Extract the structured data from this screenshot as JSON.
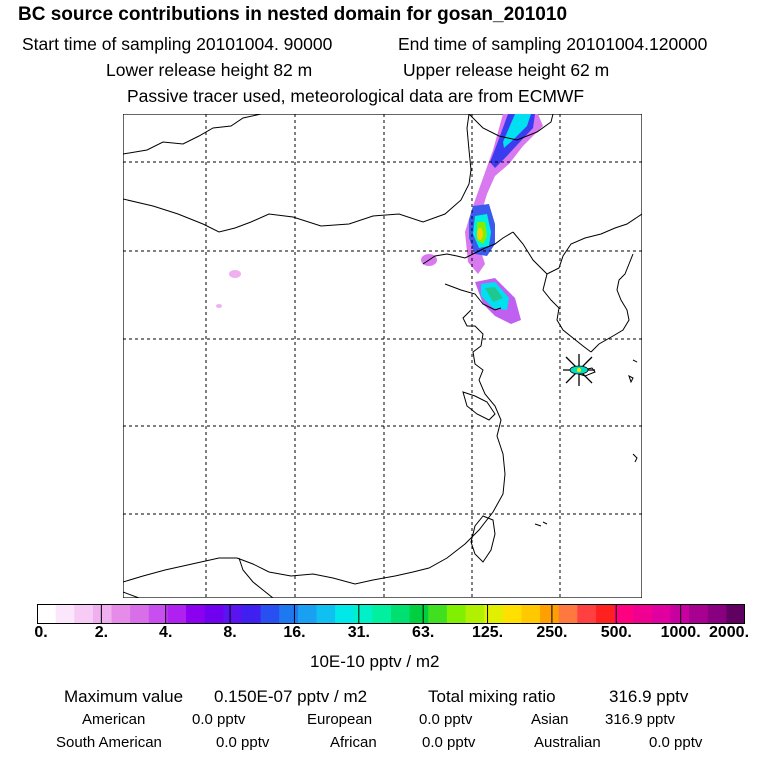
{
  "header": {
    "title": "BC  source contributions in nested domain for gosan_201010",
    "start_label": "Start time of sampling 20101004. 90000",
    "end_label": "End time of sampling 20101004.120000",
    "lower_label": "Lower release height   82 m",
    "upper_label": "Upper release height   62 m",
    "tracer_note": "Passive tracer used, meteorological data are from ECMWF"
  },
  "colorbar": {
    "ticks": [
      "0.",
      "2.",
      "4.",
      "8.",
      "16.",
      "31.",
      "63.",
      "125.",
      "250.",
      "500.",
      "1000.",
      "2000."
    ],
    "units": "10E-10 pptv / m2",
    "colors": [
      "#ffffff",
      "#fbe6fb",
      "#f6ccf6",
      "#f0b0f0",
      "#e58ce8",
      "#d86ee8",
      "#c94ef0",
      "#b020f0",
      "#8c00f0",
      "#7000f0",
      "#5a14f0",
      "#4020f0",
      "#2850f0",
      "#1e78f0",
      "#1aa0f0",
      "#10c0f0",
      "#00e8e8",
      "#00f0c8",
      "#00f0a0",
      "#00e070",
      "#00d040",
      "#40e020",
      "#80f000",
      "#b0f000",
      "#e0f000",
      "#ffe000",
      "#ffc800",
      "#ffa000",
      "#ff7840",
      "#ff4040",
      "#ff2020",
      "#ff0080",
      "#f00090",
      "#e000a0",
      "#c800a0",
      "#a80090",
      "#880080",
      "#600060"
    ]
  },
  "stats": {
    "max_label": "Maximum value",
    "max_value": "0.150E-07 pptv / m2",
    "total_label": "Total mixing ratio",
    "total_value": "316.9 pptv",
    "regions": [
      {
        "name": "American",
        "value": "0.0 pptv"
      },
      {
        "name": "European",
        "value": "0.0 pptv"
      },
      {
        "name": "Asian",
        "value": "316.9 pptv"
      },
      {
        "name": "South American",
        "value": "0.0 pptv"
      },
      {
        "name": "African",
        "value": "0.0 pptv"
      },
      {
        "name": "Australian",
        "value": "0.0 pptv"
      }
    ]
  }
}
